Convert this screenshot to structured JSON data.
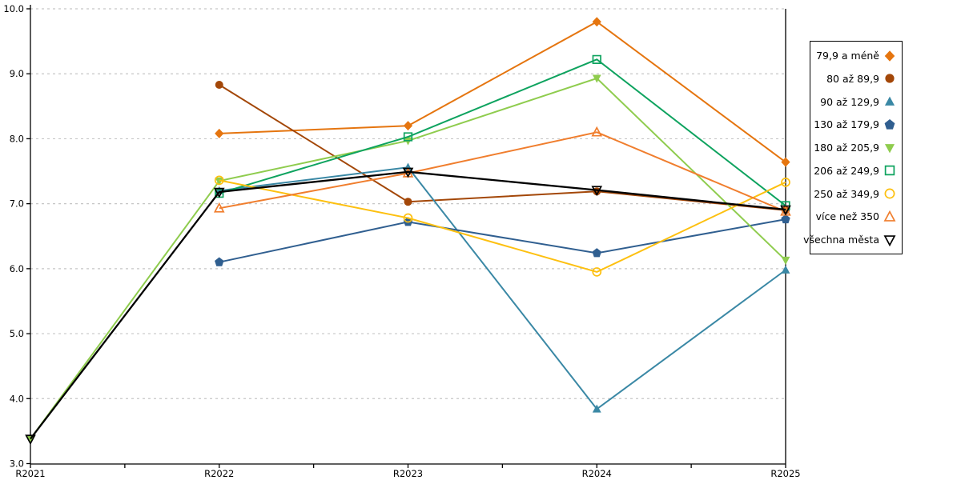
{
  "chart_data": {
    "type": "line",
    "title": "",
    "xlabel": "",
    "ylabel": "",
    "x_categories": [
      "R2021",
      "R2022",
      "R2023",
      "R2024",
      "R2025"
    ],
    "y_tick_labels": [
      "3.0",
      "4.0",
      "5.0",
      "6.0",
      "7.0",
      "8.0",
      "9.0",
      "10.0"
    ],
    "ylim": [
      3.0,
      10.0
    ],
    "y_tick_step": 1.0,
    "grid": "horizontal-dashed",
    "grid_color": "#c6c6c6",
    "axis_color": "#000000",
    "legend_position": "right",
    "series": [
      {
        "name": "79,9 a méně",
        "marker": "diamond",
        "filled": true,
        "color": "#e5750f",
        "values": [
          null,
          8.08,
          8.2,
          9.8,
          7.64
        ]
      },
      {
        "name": "80 až 89,9",
        "marker": "circle",
        "filled": true,
        "color": "#a34708",
        "values": [
          null,
          8.83,
          7.03,
          7.19,
          6.9
        ]
      },
      {
        "name": "90 až 129,9",
        "marker": "triangle-up",
        "filled": true,
        "color": "#3a88a5",
        "values": [
          null,
          7.2,
          7.56,
          3.84,
          5.98
        ]
      },
      {
        "name": "130 až 179,9",
        "marker": "pentagon",
        "filled": true,
        "color": "#305f90",
        "values": [
          null,
          6.1,
          6.72,
          6.24,
          6.76
        ]
      },
      {
        "name": "180 až 205,9",
        "marker": "triangle-down",
        "filled": true,
        "color": "#8fcc4e",
        "values": [
          3.38,
          7.35,
          7.97,
          8.93,
          6.13
        ]
      },
      {
        "name": "206 až 249,9",
        "marker": "square",
        "filled": false,
        "color": "#0ea35f",
        "values": [
          null,
          7.16,
          8.03,
          9.22,
          6.97
        ]
      },
      {
        "name": "250 až 349,9",
        "marker": "circle",
        "filled": false,
        "color": "#fdc010",
        "values": [
          null,
          7.36,
          6.78,
          5.95,
          7.33
        ]
      },
      {
        "name": "více než 350",
        "marker": "triangle-up",
        "filled": false,
        "color": "#f07e2e",
        "values": [
          null,
          6.93,
          7.47,
          8.1,
          6.88
        ]
      },
      {
        "name": "všechna města",
        "marker": "triangle-down",
        "filled": false,
        "color": "#000000",
        "values": [
          3.38,
          7.18,
          7.49,
          7.21,
          6.91
        ]
      }
    ]
  }
}
